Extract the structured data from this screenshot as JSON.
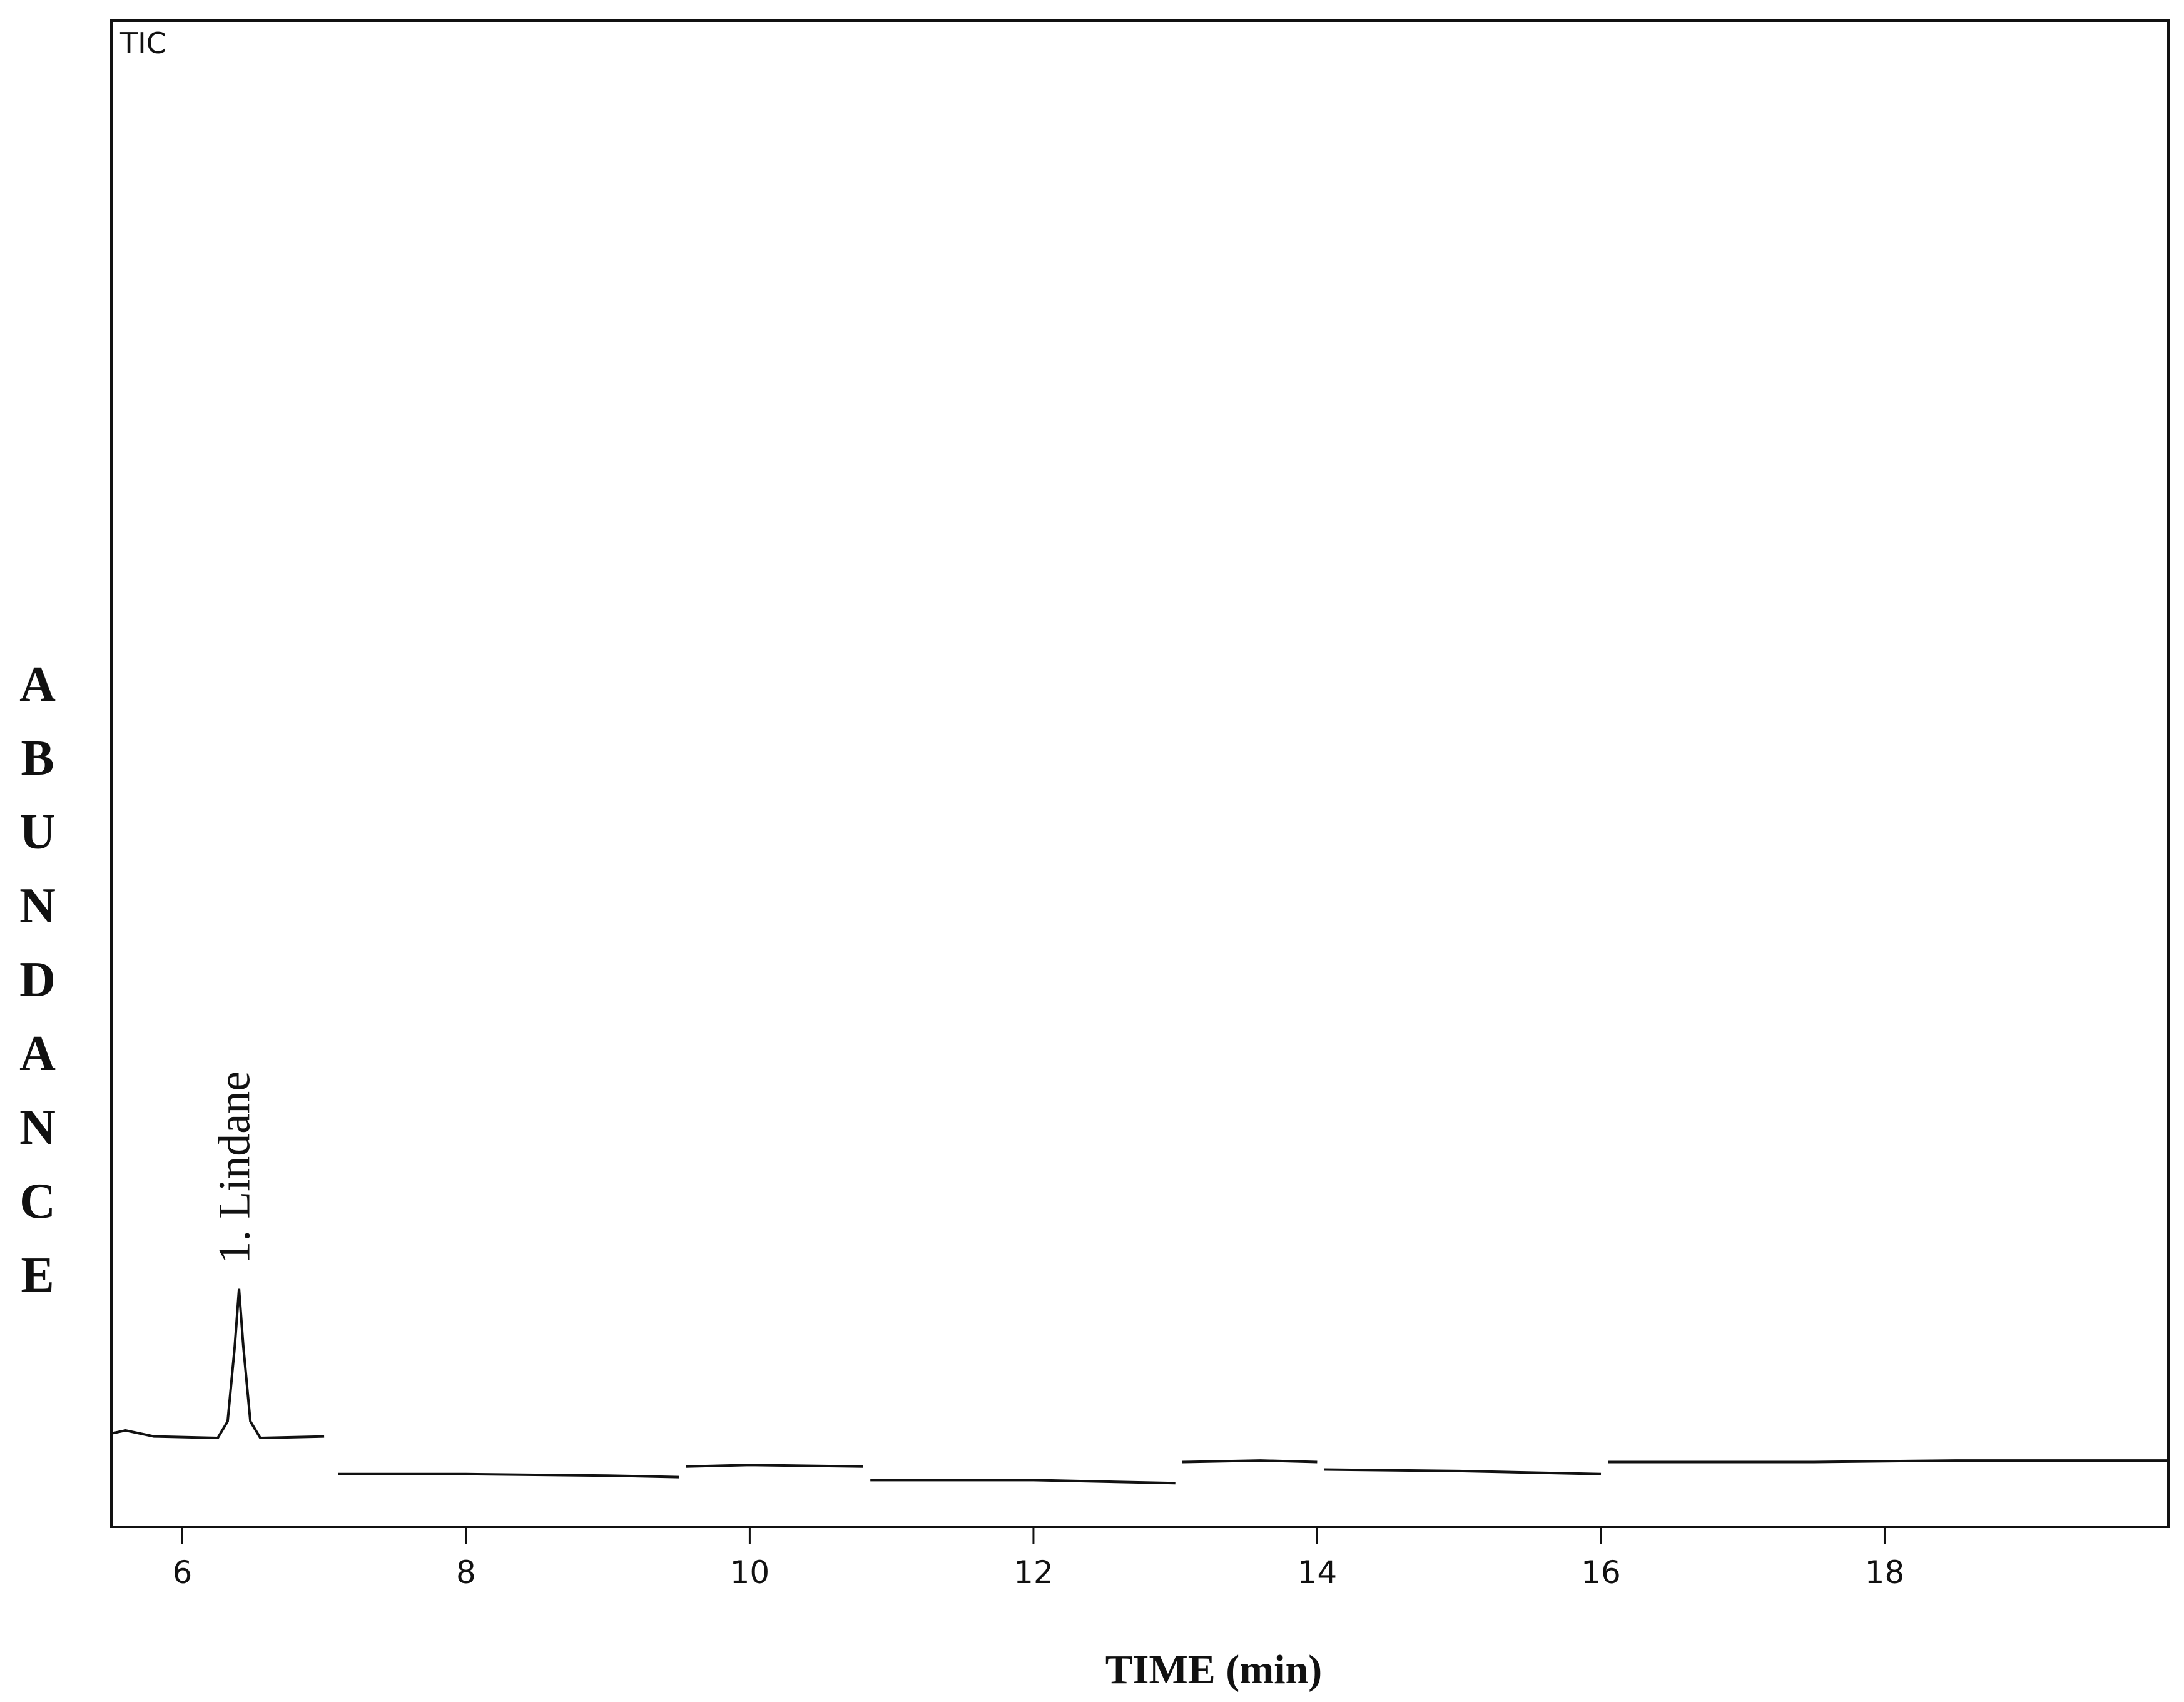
{
  "chart_data": {
    "type": "line",
    "trace_label": "TIC",
    "annotation": "1. Lindane",
    "xlabel": "TIME (min)",
    "ylabel": "ABUNDANCE",
    "color": "#111111",
    "x": [
      5.5,
      5.6,
      5.8,
      6.25,
      6.32,
      6.37,
      6.4,
      6.43,
      6.48,
      6.55,
      7.0,
      7.05,
      7.1,
      8.0,
      9.0,
      9.5,
      9.52,
      9.55,
      10.0,
      10.8,
      10.82,
      10.85,
      12.0,
      13.0,
      13.02,
      13.05,
      13.6,
      14.0,
      14.02,
      14.05,
      15.0,
      16.0,
      16.02,
      16.05,
      17.5,
      18.5,
      20.0
    ],
    "values": [
      6.2,
      6.4,
      6.0,
      5.9,
      7.0,
      12.0,
      15.8,
      12.0,
      7.0,
      5.9,
      6.0,
      null,
      3.5,
      3.5,
      3.4,
      3.3,
      null,
      4.0,
      4.1,
      4.0,
      null,
      3.1,
      3.1,
      2.9,
      null,
      4.3,
      4.4,
      4.3,
      null,
      3.8,
      3.7,
      3.5,
      null,
      4.3,
      4.3,
      4.4,
      4.4
    ],
    "xlim": [
      5.5,
      20
    ],
    "ylim": [
      0,
      100
    ],
    "xticks": [
      6,
      8,
      10,
      12,
      14,
      16,
      18
    ]
  }
}
